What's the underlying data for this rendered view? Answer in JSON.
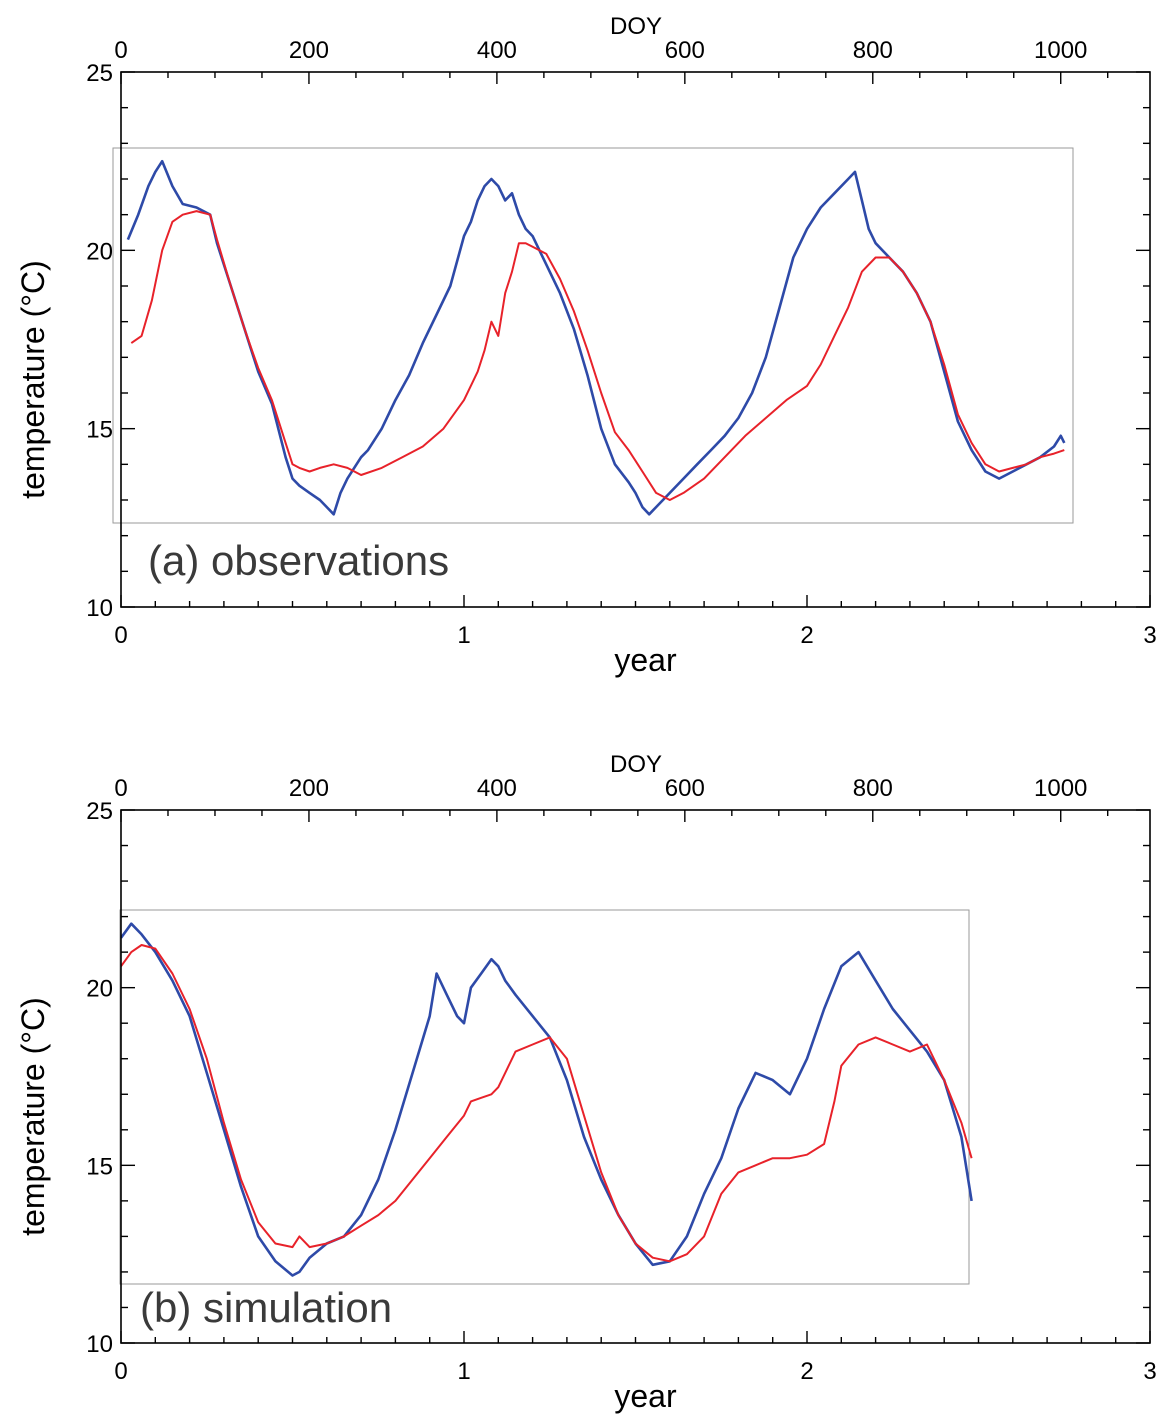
{
  "chart_data": [
    {
      "type": "line",
      "title": "",
      "panel_label": "(a) observations",
      "xlabel": "year",
      "x2label": "DOY",
      "ylabel": "temperature (°C)",
      "xlim": [
        0,
        3
      ],
      "x2lim": [
        0,
        1095
      ],
      "ylim": [
        10,
        25
      ],
      "xticks": [
        0,
        1,
        2,
        3
      ],
      "x2ticks": [
        0,
        200,
        400,
        600,
        800,
        1000
      ],
      "yticks": [
        10,
        15,
        20,
        25
      ],
      "grid": false,
      "legend": "none",
      "series": [
        {
          "color": "#2e4aa8",
          "x": [
            0.02,
            0.05,
            0.08,
            0.1,
            0.12,
            0.15,
            0.18,
            0.22,
            0.26,
            0.28,
            0.32,
            0.36,
            0.4,
            0.44,
            0.48,
            0.5,
            0.52,
            0.55,
            0.58,
            0.6,
            0.62,
            0.64,
            0.66,
            0.7,
            0.72,
            0.76,
            0.8,
            0.84,
            0.88,
            0.92,
            0.96,
            1.0,
            1.02,
            1.04,
            1.06,
            1.08,
            1.1,
            1.12,
            1.14,
            1.16,
            1.18,
            1.2,
            1.24,
            1.28,
            1.32,
            1.36,
            1.4,
            1.44,
            1.48,
            1.5,
            1.52,
            1.54,
            1.56,
            1.6,
            1.64,
            1.68,
            1.72,
            1.76,
            1.8,
            1.84,
            1.88,
            1.92,
            1.96,
            2.0,
            2.04,
            2.08,
            2.12,
            2.14,
            2.16,
            2.18,
            2.2,
            2.24,
            2.28,
            2.32,
            2.36,
            2.4,
            2.44,
            2.48,
            2.52,
            2.56,
            2.6,
            2.64,
            2.68,
            2.72,
            2.74,
            2.75
          ],
          "y": [
            20.3,
            21.0,
            21.8,
            22.2,
            22.5,
            21.8,
            21.3,
            21.2,
            21.0,
            20.2,
            19.0,
            17.8,
            16.6,
            15.7,
            14.2,
            13.6,
            13.4,
            13.2,
            13.0,
            12.8,
            12.6,
            13.2,
            13.6,
            14.2,
            14.4,
            15.0,
            15.8,
            16.5,
            17.4,
            18.2,
            19.0,
            20.4,
            20.8,
            21.4,
            21.8,
            22.0,
            21.8,
            21.4,
            21.6,
            21.0,
            20.6,
            20.4,
            19.6,
            18.8,
            17.8,
            16.5,
            15.0,
            14.0,
            13.5,
            13.2,
            12.8,
            12.6,
            12.8,
            13.2,
            13.6,
            14.0,
            14.4,
            14.8,
            15.3,
            16.0,
            17.0,
            18.4,
            19.8,
            20.6,
            21.2,
            21.6,
            22.0,
            22.2,
            21.4,
            20.6,
            20.2,
            19.8,
            19.4,
            18.8,
            18.0,
            16.6,
            15.2,
            14.4,
            13.8,
            13.6,
            13.8,
            14.0,
            14.2,
            14.5,
            14.8,
            14.6
          ]
        },
        {
          "color": "#e8222a",
          "x": [
            0.03,
            0.06,
            0.09,
            0.12,
            0.15,
            0.18,
            0.22,
            0.26,
            0.28,
            0.32,
            0.36,
            0.4,
            0.44,
            0.48,
            0.5,
            0.52,
            0.55,
            0.58,
            0.62,
            0.66,
            0.7,
            0.76,
            0.82,
            0.88,
            0.94,
            1.0,
            1.04,
            1.06,
            1.08,
            1.1,
            1.12,
            1.14,
            1.16,
            1.18,
            1.2,
            1.24,
            1.28,
            1.32,
            1.36,
            1.4,
            1.44,
            1.48,
            1.52,
            1.56,
            1.6,
            1.64,
            1.7,
            1.76,
            1.82,
            1.88,
            1.94,
            2.0,
            2.04,
            2.08,
            2.12,
            2.16,
            2.2,
            2.24,
            2.28,
            2.32,
            2.36,
            2.4,
            2.44,
            2.48,
            2.52,
            2.56,
            2.6,
            2.64,
            2.68,
            2.72,
            2.75
          ],
          "y": [
            17.4,
            17.6,
            18.6,
            20.0,
            20.8,
            21.0,
            21.1,
            21.0,
            20.3,
            19.0,
            17.8,
            16.7,
            15.8,
            14.6,
            14.0,
            13.9,
            13.8,
            13.9,
            14.0,
            13.9,
            13.7,
            13.9,
            14.2,
            14.5,
            15.0,
            15.8,
            16.6,
            17.2,
            18.0,
            17.6,
            18.8,
            19.4,
            20.2,
            20.2,
            20.1,
            19.9,
            19.2,
            18.3,
            17.2,
            16.0,
            14.9,
            14.4,
            13.8,
            13.2,
            13.0,
            13.2,
            13.6,
            14.2,
            14.8,
            15.3,
            15.8,
            16.2,
            16.8,
            17.6,
            18.4,
            19.4,
            19.8,
            19.8,
            19.4,
            18.8,
            18.0,
            16.8,
            15.4,
            14.6,
            14.0,
            13.8,
            13.9,
            14.0,
            14.2,
            14.3,
            14.4
          ]
        }
      ]
    },
    {
      "type": "line",
      "title": "",
      "panel_label": "(b) simulation",
      "xlabel": "year",
      "x2label": "DOY",
      "ylabel": "temperature (°C)",
      "xlim": [
        0,
        3
      ],
      "x2lim": [
        0,
        1095
      ],
      "ylim": [
        10,
        25
      ],
      "xticks": [
        0,
        1,
        2,
        3
      ],
      "x2ticks": [
        0,
        200,
        400,
        600,
        800,
        1000
      ],
      "yticks": [
        10,
        15,
        20,
        25
      ],
      "grid": false,
      "legend": "none",
      "series": [
        {
          "color": "#2e4aa8",
          "x": [
            0.0,
            0.03,
            0.06,
            0.1,
            0.15,
            0.2,
            0.25,
            0.3,
            0.35,
            0.4,
            0.45,
            0.5,
            0.52,
            0.55,
            0.6,
            0.65,
            0.7,
            0.75,
            0.8,
            0.85,
            0.9,
            0.92,
            0.95,
            0.98,
            1.0,
            1.02,
            1.05,
            1.08,
            1.1,
            1.12,
            1.15,
            1.2,
            1.25,
            1.3,
            1.35,
            1.4,
            1.45,
            1.5,
            1.55,
            1.6,
            1.65,
            1.7,
            1.75,
            1.8,
            1.85,
            1.9,
            1.95,
            2.0,
            2.05,
            2.1,
            2.15,
            2.2,
            2.25,
            2.3,
            2.35,
            2.4,
            2.45,
            2.48
          ],
          "y": [
            21.4,
            21.8,
            21.5,
            21.0,
            20.2,
            19.2,
            17.6,
            16.0,
            14.4,
            13.0,
            12.3,
            11.9,
            12.0,
            12.4,
            12.8,
            13.0,
            13.6,
            14.6,
            16.0,
            17.6,
            19.2,
            20.4,
            19.8,
            19.2,
            19.0,
            20.0,
            20.4,
            20.8,
            20.6,
            20.2,
            19.8,
            19.2,
            18.6,
            17.4,
            15.8,
            14.6,
            13.6,
            12.8,
            12.2,
            12.3,
            13.0,
            14.2,
            15.2,
            16.6,
            17.6,
            17.4,
            17.0,
            18.0,
            19.4,
            20.6,
            21.0,
            20.2,
            19.4,
            18.8,
            18.2,
            17.4,
            15.8,
            14.0
          ]
        },
        {
          "color": "#e8222a",
          "x": [
            0.0,
            0.03,
            0.06,
            0.1,
            0.15,
            0.2,
            0.25,
            0.3,
            0.35,
            0.4,
            0.45,
            0.5,
            0.52,
            0.55,
            0.6,
            0.65,
            0.7,
            0.75,
            0.8,
            0.85,
            0.9,
            0.95,
            1.0,
            1.02,
            1.05,
            1.08,
            1.1,
            1.12,
            1.15,
            1.2,
            1.25,
            1.3,
            1.35,
            1.4,
            1.45,
            1.5,
            1.55,
            1.6,
            1.65,
            1.7,
            1.75,
            1.8,
            1.85,
            1.9,
            1.95,
            2.0,
            2.05,
            2.08,
            2.1,
            2.15,
            2.2,
            2.25,
            2.3,
            2.35,
            2.4,
            2.45,
            2.48
          ],
          "y": [
            20.6,
            21.0,
            21.2,
            21.1,
            20.4,
            19.4,
            18.0,
            16.2,
            14.6,
            13.4,
            12.8,
            12.7,
            13.0,
            12.7,
            12.8,
            13.0,
            13.3,
            13.6,
            14.0,
            14.6,
            15.2,
            15.8,
            16.4,
            16.8,
            16.9,
            17.0,
            17.2,
            17.6,
            18.2,
            18.4,
            18.6,
            18.0,
            16.4,
            14.8,
            13.6,
            12.8,
            12.4,
            12.3,
            12.5,
            13.0,
            14.2,
            14.8,
            15.0,
            15.2,
            15.2,
            15.3,
            15.6,
            16.8,
            17.8,
            18.4,
            18.6,
            18.4,
            18.2,
            18.4,
            17.4,
            16.2,
            15.2
          ]
        }
      ]
    }
  ]
}
